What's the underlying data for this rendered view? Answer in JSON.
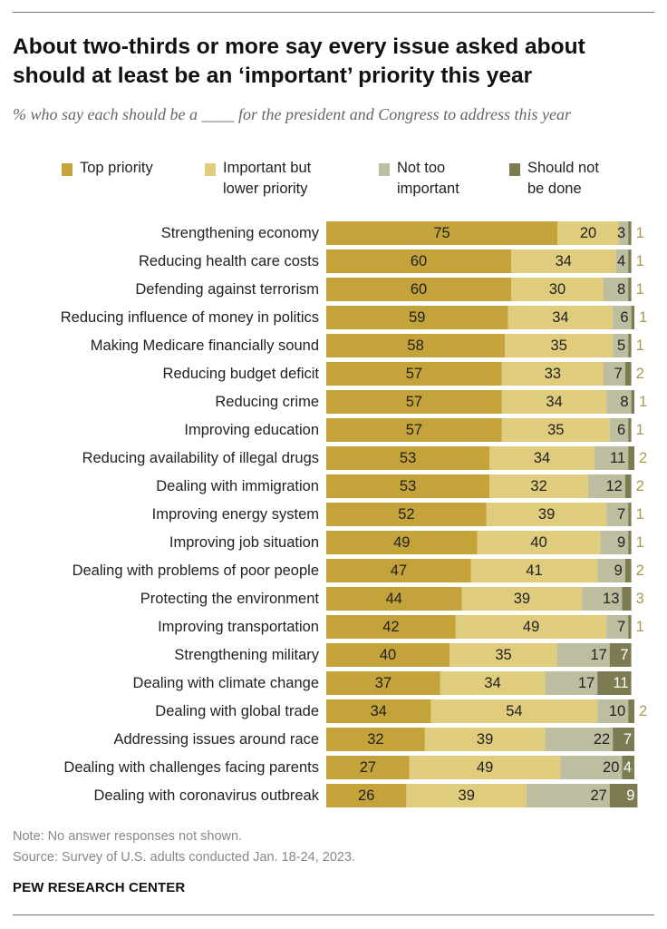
{
  "header": {
    "title": "About two-thirds or more say every issue asked about should at least be an ‘important’ priority this year",
    "subtitle": "% who say each should be a ____ for the president and Congress to address this year"
  },
  "colors": {
    "top": "#c4a33a",
    "important": "#dfcc7d",
    "not_too": "#bdbda0",
    "not_done": "#7d7b52",
    "outside_label": "#a89a4a"
  },
  "legend": [
    {
      "label": "Top priority"
    },
    {
      "label": "Important but lower priority"
    },
    {
      "label": "Not too important"
    },
    {
      "label": "Should not be done"
    }
  ],
  "chart_data": {
    "type": "bar",
    "orientation": "horizontal",
    "stacked": true,
    "title": "About two-thirds or more say every issue asked about should at least be an ‘important’ priority this year",
    "xlabel": "",
    "ylabel": "",
    "xlim": [
      0,
      100
    ],
    "categories": [
      "Strengthening economy",
      "Reducing health care costs",
      "Defending against terrorism",
      "Reducing influence of money in politics",
      "Making Medicare financially sound",
      "Reducing budget deficit",
      "Reducing crime",
      "Improving education",
      "Reducing availability of illegal drugs",
      "Dealing with immigration",
      "Improving energy system",
      "Improving job situation",
      "Dealing with problems of poor people",
      "Protecting the environment",
      "Improving transportation",
      "Strengthening military",
      "Dealing with climate change",
      "Dealing with global trade",
      "Addressing issues around race",
      "Dealing with challenges facing parents",
      "Dealing with coronavirus outbreak"
    ],
    "series": [
      {
        "name": "Top priority",
        "values": [
          75,
          60,
          60,
          59,
          58,
          57,
          57,
          57,
          53,
          53,
          52,
          49,
          47,
          44,
          42,
          40,
          37,
          34,
          32,
          27,
          26
        ]
      },
      {
        "name": "Important but lower priority",
        "values": [
          20,
          34,
          30,
          34,
          35,
          33,
          34,
          35,
          34,
          32,
          39,
          40,
          41,
          39,
          49,
          35,
          34,
          54,
          39,
          49,
          39
        ]
      },
      {
        "name": "Not too important",
        "values": [
          3,
          4,
          8,
          6,
          5,
          7,
          8,
          6,
          11,
          12,
          7,
          9,
          9,
          13,
          7,
          17,
          17,
          10,
          22,
          20,
          27
        ]
      },
      {
        "name": "Should not be done",
        "values": [
          1,
          1,
          1,
          1,
          1,
          2,
          1,
          1,
          2,
          2,
          1,
          1,
          2,
          3,
          1,
          7,
          11,
          2,
          7,
          4,
          9
        ]
      }
    ]
  },
  "footer": {
    "note": "Note: No answer responses not shown.",
    "source": "Source: Survey of U.S. adults conducted Jan. 18-24, 2023.",
    "brand": "PEW RESEARCH CENTER"
  }
}
